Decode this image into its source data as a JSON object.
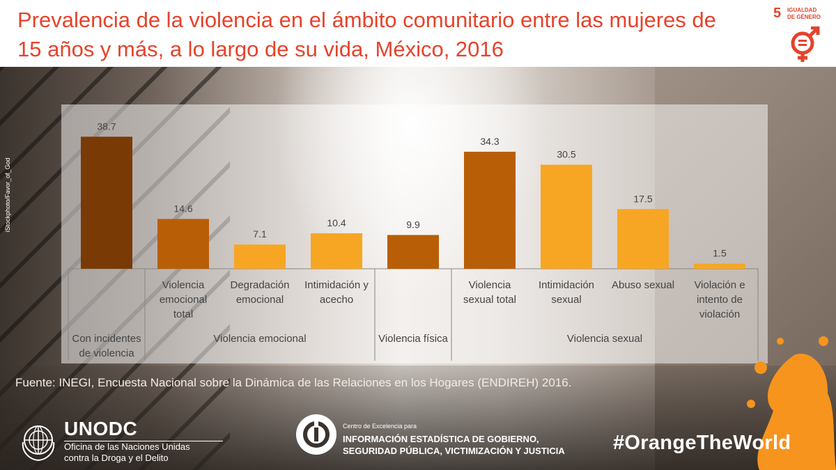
{
  "header": {
    "title": "Prevalencia de la violencia en el ámbito comunitario entre las mujeres de 15 años y más, a lo largo de su vida, México, 2016"
  },
  "sdg": {
    "number": "5",
    "label_line1": "IGUALDAD",
    "label_line2": "DE GÉNERO",
    "color": "#e5432b"
  },
  "photo_credit": "iStockphoto/Favor_of_God",
  "chart_data": {
    "type": "bar",
    "title": "Prevalencia de la violencia en el ámbito comunitario entre las mujeres de 15 años y más, a lo largo de su vida, México, 2016",
    "categories": [
      "",
      "Violencia emocional total",
      "Degradación emocional",
      "Intimidación y acecho",
      "",
      "Violencia sexual total",
      "Intimidación sexual",
      "Abuso sexual",
      "Violación e intento de violación"
    ],
    "category_lines": [
      [],
      [
        "Violencia",
        "emocional",
        "total"
      ],
      [
        "Degradación",
        "emocional"
      ],
      [
        "Intimidación y",
        "acecho"
      ],
      [],
      [
        "Violencia",
        "sexual total"
      ],
      [
        "Intimidación",
        "sexual"
      ],
      [
        "Abuso sexual"
      ],
      [
        "Violación e",
        "intento de",
        "violación"
      ]
    ],
    "groups": [
      {
        "label": "Con incidentes de violencia",
        "lines": [
          "Con incidentes",
          "de violencia"
        ],
        "start": 0,
        "end": 0
      },
      {
        "label": "Violencia emocional",
        "lines": [
          "Violencia emocional"
        ],
        "start": 1,
        "end": 3
      },
      {
        "label": "Violencia física",
        "lines": [
          "Violencia física"
        ],
        "start": 4,
        "end": 4
      },
      {
        "label": "Violencia sexual",
        "lines": [
          "Violencia sexual"
        ],
        "start": 5,
        "end": 8
      }
    ],
    "values": [
      38.7,
      14.6,
      7.1,
      10.4,
      9.9,
      34.3,
      30.5,
      17.5,
      1.5
    ],
    "value_labels": [
      "38.7",
      "14.6",
      "7.1",
      "10.4",
      "9.9",
      "34.3",
      "30.5",
      "17.5",
      "1.5"
    ],
    "bar_colors": [
      "#7a3a05",
      "#b85e06",
      "#f7a623",
      "#f7a623",
      "#b85e06",
      "#b85e06",
      "#f7a623",
      "#f7a623",
      "#f7a623"
    ],
    "ylim": [
      0,
      40
    ],
    "grid": false,
    "legend": "none"
  },
  "source": "Fuente: INEGI, Encuesta Nacional sobre la Dinámica de las Relaciones en los Hogares (ENDIREH) 2016.",
  "footer": {
    "unodc_name": "UNODC",
    "unodc_sub1": "Oficina de las Naciones Unidas",
    "unodc_sub2": "contra la Droga y el Delito",
    "coe_small": "Centro de Excelencia para",
    "coe_line1": "INFORMACIÓN ESTADÍSTICA DE GOBIERNO,",
    "coe_line2": "SEGURIDAD PÚBLICA, VICTIMIZACIÓN Y JUSTICIA",
    "hashtag": "#OrangeTheWorld"
  },
  "colors": {
    "accent": "#e5432b",
    "orange": "#f7a623",
    "dark_orange": "#b85e06",
    "brown": "#7a3a05"
  }
}
